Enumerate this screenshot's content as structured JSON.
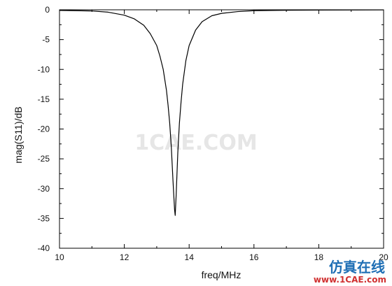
{
  "chart_data": {
    "type": "line",
    "title": "",
    "xlabel": "freq/MHz",
    "ylabel": "mag(S11)/dB",
    "xlim": [
      10,
      20
    ],
    "ylim": [
      -40,
      0
    ],
    "x_ticks": [
      10,
      12,
      14,
      16,
      18,
      20
    ],
    "x_tick_labels": [
      "10",
      "12",
      "14",
      "16",
      "18",
      "20"
    ],
    "y_ticks": [
      0,
      -5,
      -10,
      -15,
      -20,
      -25,
      -30,
      -35,
      -40
    ],
    "y_tick_labels": [
      "0",
      "-5",
      "-10",
      "-15",
      "-20",
      "-25",
      "-30",
      "-35",
      "-40"
    ],
    "grid": false,
    "legend": "none",
    "series": [
      {
        "color": "#000000",
        "x": [
          10.0,
          10.5,
          11.0,
          11.5,
          12.0,
          12.3,
          12.6,
          12.8,
          13.0,
          13.1,
          13.2,
          13.3,
          13.35,
          13.4,
          13.45,
          13.5,
          13.55,
          13.57,
          13.6,
          13.65,
          13.7,
          13.75,
          13.8,
          13.9,
          14.0,
          14.2,
          14.4,
          14.7,
          15.0,
          15.5,
          16.0,
          17.0,
          18.0,
          19.0,
          20.0
        ],
        "y": [
          -0.1,
          -0.15,
          -0.2,
          -0.4,
          -0.9,
          -1.5,
          -2.6,
          -4.0,
          -6.0,
          -7.8,
          -10.0,
          -13.5,
          -16.0,
          -19.0,
          -23.0,
          -28.5,
          -33.5,
          -34.5,
          -31.0,
          -24.0,
          -19.0,
          -15.5,
          -12.5,
          -8.5,
          -6.0,
          -3.4,
          -2.0,
          -1.0,
          -0.6,
          -0.3,
          -0.15,
          -0.08,
          -0.05,
          -0.03,
          -0.02
        ]
      }
    ]
  },
  "watermark": {
    "center_text": "1CAE.COM",
    "logo_cn": "仿真在线",
    "logo_url": "www.1CAE.com",
    "colors": {
      "center": "#e6e6e6",
      "logo_cn": "#1f6fb5",
      "logo_url": "#d03030"
    }
  }
}
